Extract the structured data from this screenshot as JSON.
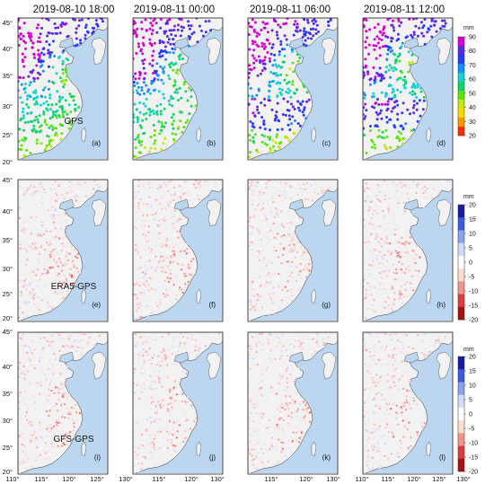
{
  "column_titles": [
    "2019-08-10 18:00",
    "2019-08-11 00:00",
    "2019-08-11 06:00",
    "2019-08-11 12:00"
  ],
  "row_labels": [
    "GPS",
    "ERA5-GPS",
    "GFS-GPS"
  ],
  "panel_labels": [
    [
      "(a)",
      "(b)",
      "(c)",
      "(d)"
    ],
    [
      "(e)",
      "(f)",
      "(g)",
      "(h)"
    ],
    [
      "(i)",
      "(j)",
      "(k)",
      "(l)"
    ]
  ],
  "lat_ticks": [
    "45°",
    "40°",
    "35°",
    "30°",
    "25°",
    "20°"
  ],
  "lon_ticks": [
    "110°",
    "115°",
    "120°",
    "125°",
    "130°"
  ],
  "colorbars": [
    {
      "unit": "mm",
      "ticks": [
        "90",
        "80",
        "70",
        "60",
        "50",
        "40",
        "30",
        "20"
      ],
      "colors": [
        "#d400d4",
        "#5a28e6",
        "#1f3cff",
        "#1a8cff",
        "#14d2d2",
        "#14d26e",
        "#5ae614",
        "#c8e614",
        "#ffd700",
        "#ff9600",
        "#ff2d00"
      ]
    },
    {
      "unit": "mm",
      "ticks": [
        "20",
        "15",
        "10",
        "5",
        "0",
        "-5",
        "-10",
        "-15",
        "-20"
      ],
      "colors": [
        "#1a1aa0",
        "#3c5adc",
        "#8ca0f0",
        "#d2dcfa",
        "#ffffff",
        "#fadcd2",
        "#f0968c",
        "#dc3c3c",
        "#a01414"
      ]
    },
    {
      "unit": "mm",
      "ticks": [
        "20",
        "15",
        "10",
        "5",
        "0",
        "-5",
        "-10",
        "-15",
        "-20"
      ],
      "colors": [
        "#1a1aa0",
        "#3c5adc",
        "#8ca0f0",
        "#d2dcfa",
        "#ffffff",
        "#fadcd2",
        "#f0968c",
        "#dc3c3c",
        "#a01414"
      ]
    }
  ],
  "colors": {
    "sea": "#bcd6f0",
    "land": "#f2f2f2",
    "coast": "#333333"
  }
}
